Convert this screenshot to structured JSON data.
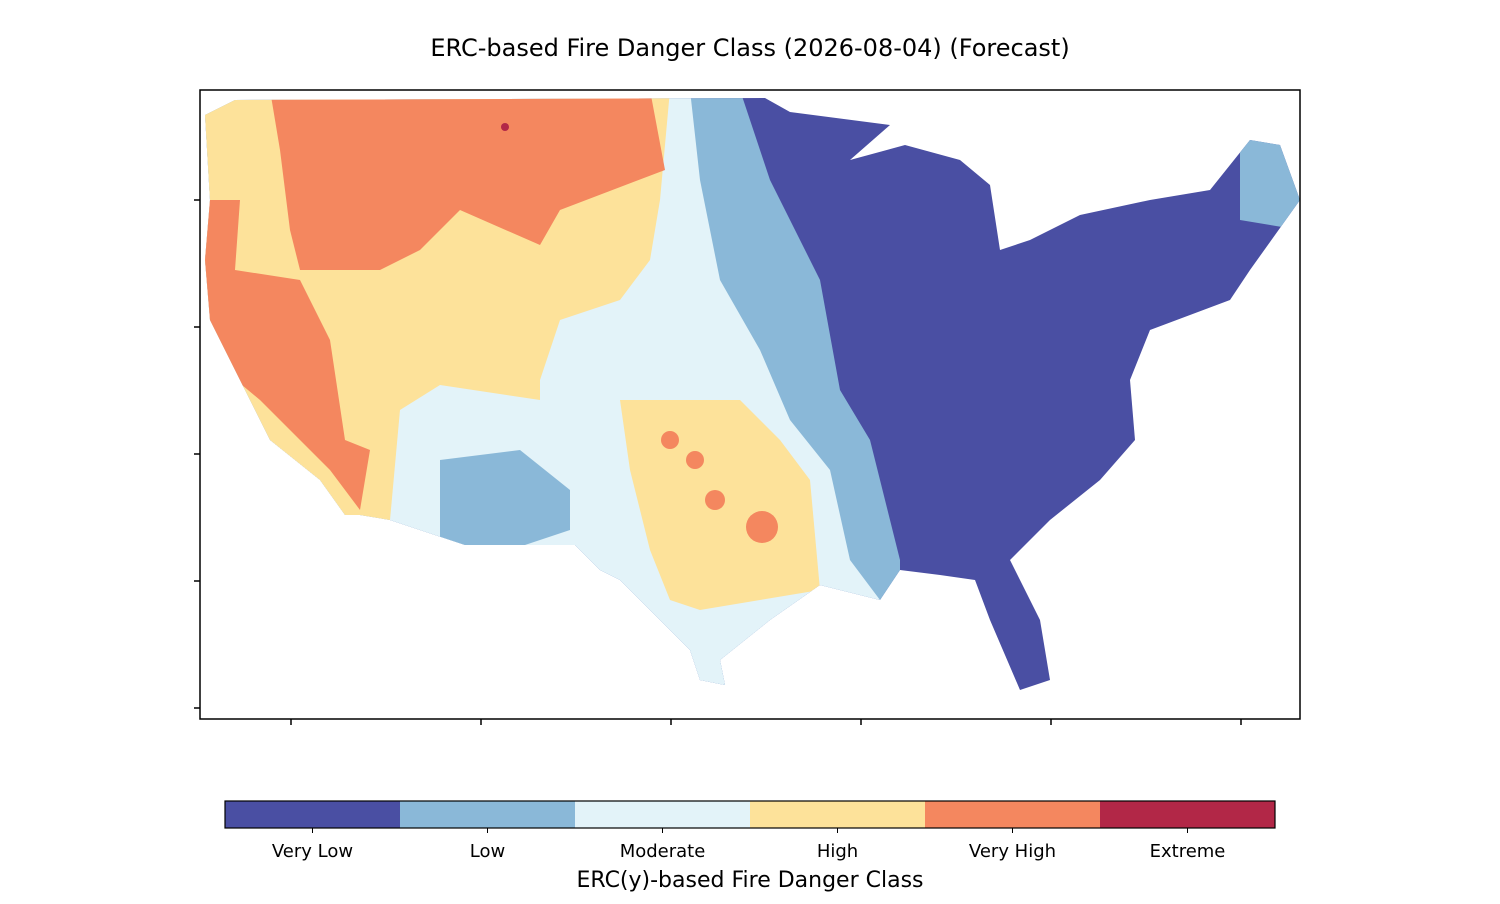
{
  "title": "ERC-based Fire Danger Class (2026-08-04) (Forecast)",
  "colorbar": {
    "label": "ERC(y)-based Fire Danger Class",
    "classes": [
      {
        "name": "Very Low",
        "color": "#4a4fa3"
      },
      {
        "name": "Low",
        "color": "#8ab8d8"
      },
      {
        "name": "Moderate",
        "color": "#e3f3f9"
      },
      {
        "name": "High",
        "color": "#fde29a"
      },
      {
        "name": "Very High",
        "color": "#f4875f"
      },
      {
        "name": "Extreme",
        "color": "#b22747"
      }
    ]
  }
}
